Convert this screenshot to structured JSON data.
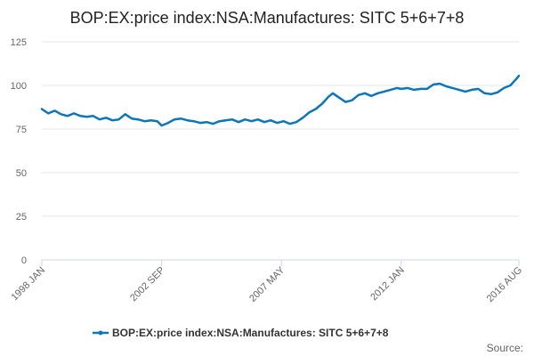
{
  "chart_data": {
    "type": "line",
    "title": "BOP:EX:price index:NSA:Manufactures: SITC 5+6+7+8",
    "xlabel": "",
    "ylabel": "",
    "ylim": [
      0,
      125
    ],
    "yticks": [
      0,
      25,
      50,
      75,
      100,
      125
    ],
    "xlim": [
      "1998-01",
      "2016-08"
    ],
    "xtick_labels": [
      "1998 JAN",
      "2002 SEP",
      "2007 MAY",
      "2012 JAN",
      "2016 AUG"
    ],
    "xtick_dates": [
      "1998-01",
      "2002-09",
      "2007-05",
      "2012-01",
      "2016-08"
    ],
    "grid": true,
    "legend": "bottom",
    "source_label": "Source:",
    "colors": {
      "series": "#0b77b8",
      "grid": "#e6e6e6",
      "axis": "#ccd6eb"
    },
    "series": [
      {
        "name": "BOP:EX:price index:NSA:Manufactures: SITC 5+6+7+8",
        "points": [
          [
            "1998-01",
            86.5
          ],
          [
            "1998-04",
            84.0
          ],
          [
            "1998-07",
            85.5
          ],
          [
            "1998-10",
            83.5
          ],
          [
            "1999-01",
            82.5
          ],
          [
            "1999-04",
            84.0
          ],
          [
            "1999-07",
            82.5
          ],
          [
            "1999-10",
            82.0
          ],
          [
            "2000-01",
            82.5
          ],
          [
            "2000-04",
            80.5
          ],
          [
            "2000-07",
            81.5
          ],
          [
            "2000-10",
            80.0
          ],
          [
            "2001-01",
            80.5
          ],
          [
            "2001-04",
            83.5
          ],
          [
            "2001-07",
            81.0
          ],
          [
            "2001-10",
            80.5
          ],
          [
            "2002-01",
            79.5
          ],
          [
            "2002-04",
            80.0
          ],
          [
            "2002-07",
            79.5
          ],
          [
            "2002-09",
            77.0
          ],
          [
            "2002-12",
            78.5
          ],
          [
            "2003-03",
            80.5
          ],
          [
            "2003-06",
            81.0
          ],
          [
            "2003-09",
            80.0
          ],
          [
            "2003-12",
            79.5
          ],
          [
            "2004-03",
            78.5
          ],
          [
            "2004-06",
            79.0
          ],
          [
            "2004-09",
            78.0
          ],
          [
            "2004-12",
            79.5
          ],
          [
            "2005-03",
            80.0
          ],
          [
            "2005-06",
            80.5
          ],
          [
            "2005-09",
            79.0
          ],
          [
            "2005-12",
            80.5
          ],
          [
            "2006-03",
            79.5
          ],
          [
            "2006-06",
            80.5
          ],
          [
            "2006-09",
            79.0
          ],
          [
            "2006-12",
            80.0
          ],
          [
            "2007-03",
            78.5
          ],
          [
            "2007-06",
            79.5
          ],
          [
            "2007-09",
            78.0
          ],
          [
            "2007-12",
            79.0
          ],
          [
            "2008-03",
            81.5
          ],
          [
            "2008-06",
            84.5
          ],
          [
            "2008-09",
            86.5
          ],
          [
            "2008-12",
            89.5
          ],
          [
            "2009-03",
            93.5
          ],
          [
            "2009-05",
            95.5
          ],
          [
            "2009-08",
            93.0
          ],
          [
            "2009-11",
            90.5
          ],
          [
            "2010-02",
            91.5
          ],
          [
            "2010-05",
            94.5
          ],
          [
            "2010-08",
            95.5
          ],
          [
            "2010-11",
            94.0
          ],
          [
            "2011-02",
            95.5
          ],
          [
            "2011-05",
            96.5
          ],
          [
            "2011-08",
            97.5
          ],
          [
            "2011-11",
            98.5
          ],
          [
            "2012-01",
            98.0
          ],
          [
            "2012-04",
            98.5
          ],
          [
            "2012-07",
            97.5
          ],
          [
            "2012-10",
            98.0
          ],
          [
            "2013-01",
            98.0
          ],
          [
            "2013-04",
            100.5
          ],
          [
            "2013-07",
            101.0
          ],
          [
            "2013-10",
            99.5
          ],
          [
            "2014-01",
            98.5
          ],
          [
            "2014-04",
            97.5
          ],
          [
            "2014-07",
            96.5
          ],
          [
            "2014-10",
            97.5
          ],
          [
            "2015-01",
            98.0
          ],
          [
            "2015-04",
            95.5
          ],
          [
            "2015-07",
            95.0
          ],
          [
            "2015-10",
            96.0
          ],
          [
            "2016-01",
            98.5
          ],
          [
            "2016-04",
            100.0
          ],
          [
            "2016-07",
            104.0
          ],
          [
            "2016-08",
            105.5
          ]
        ]
      }
    ]
  }
}
